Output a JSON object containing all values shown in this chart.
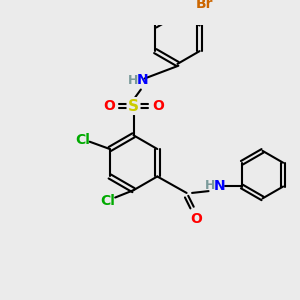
{
  "bg_color": "#ebebeb",
  "bond_color": "#000000",
  "bond_lw": 1.5,
  "atom_colors": {
    "C": "#000000",
    "H": "#7a9a9a",
    "N": "#0000ff",
    "O": "#ff0000",
    "S": "#cccc00",
    "Cl": "#00aa00",
    "Br": "#cc6600"
  },
  "font_size": 9,
  "figsize": [
    3.0,
    3.0
  ],
  "dpi": 100
}
